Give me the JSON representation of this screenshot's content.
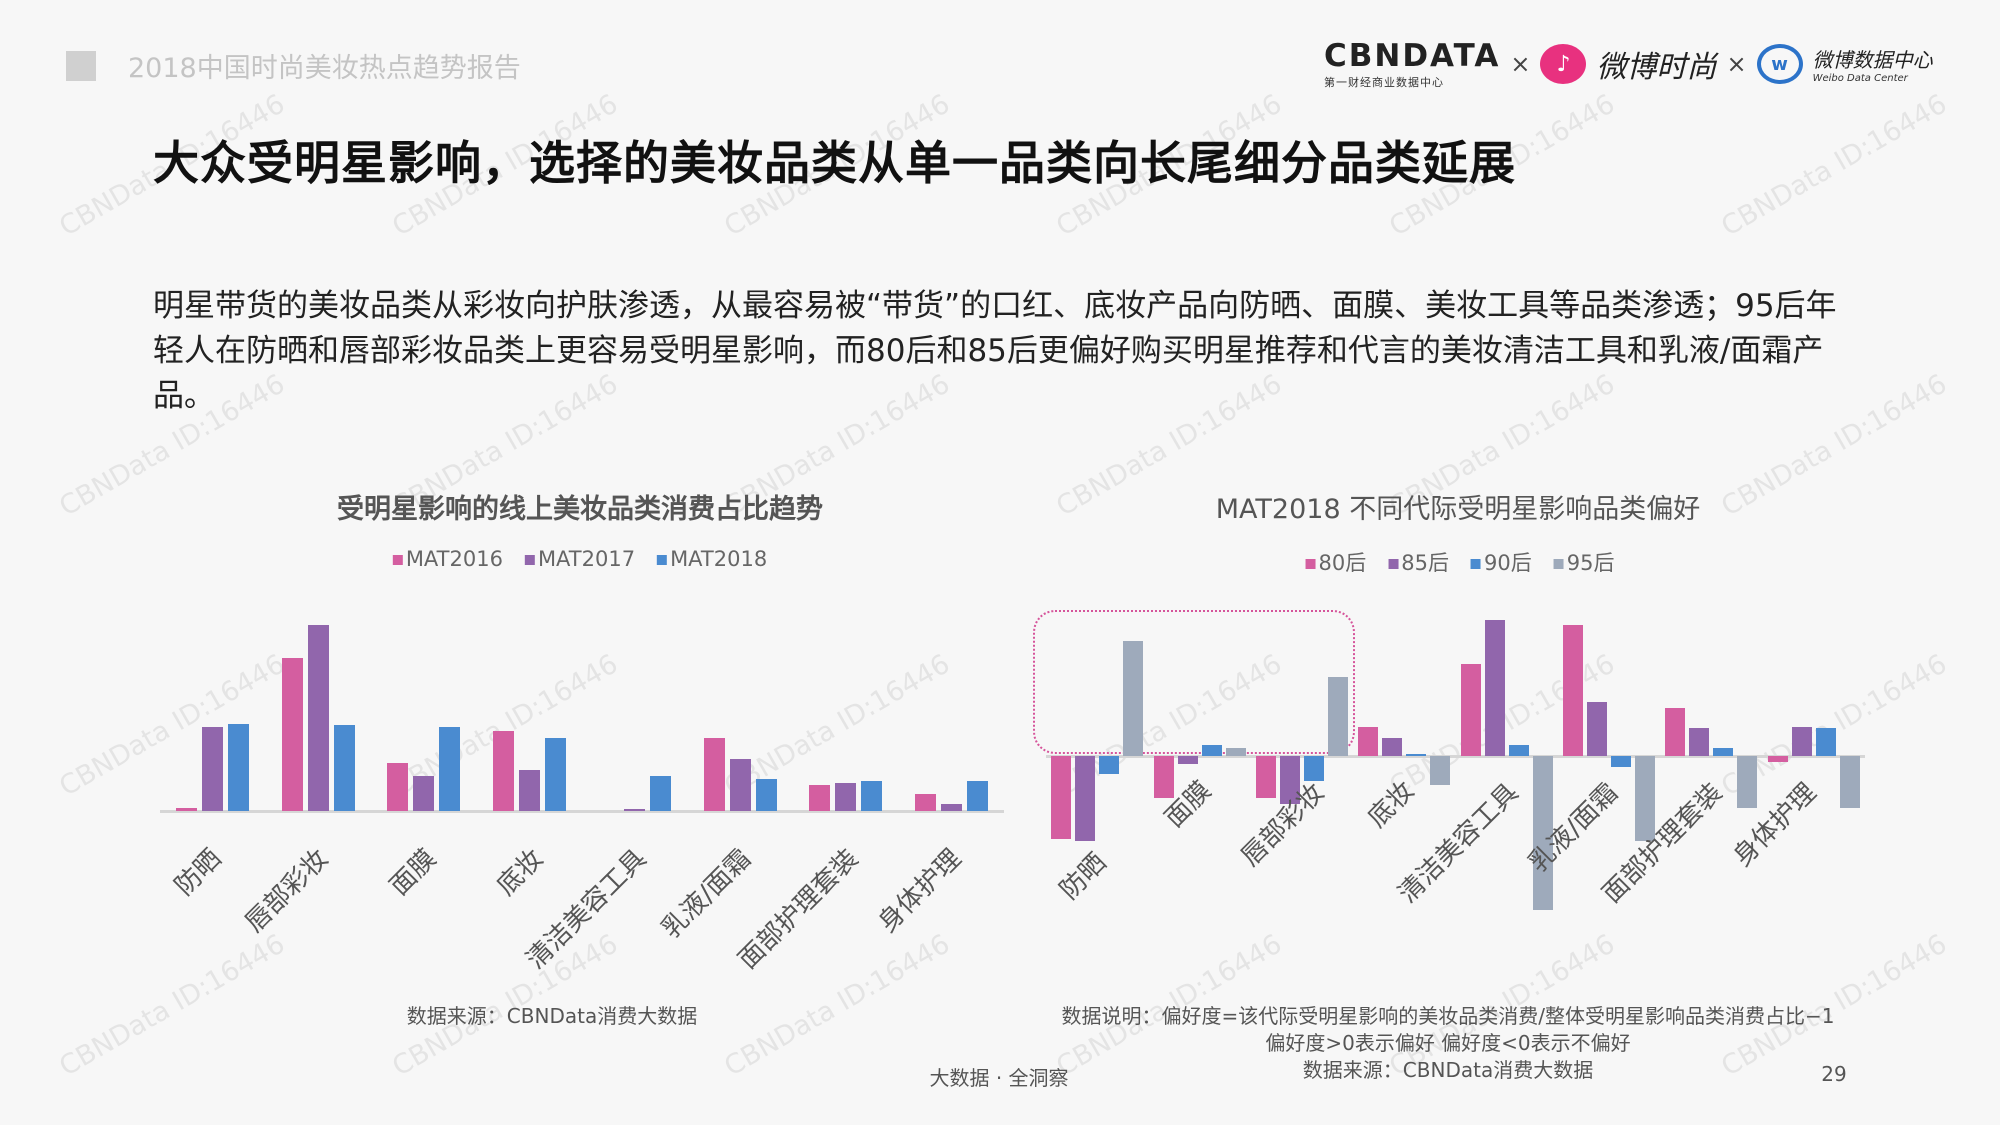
{
  "header": {
    "report_title": "2018中国时尚美妆热点趋势报告",
    "logos": {
      "cbndata": "CBNDATA",
      "cbndata_sub": "第一财经商业数据中心",
      "weibo_fashion": "微博时尚",
      "weibo_data": "微博数据中心",
      "weibo_data_sub": "Weibo Data Center",
      "separator": "×"
    }
  },
  "title": "大众受明星影响，选择的美妆品类从单一品类向长尾细分品类延展",
  "paragraph": "明星带货的美妆品类从彩妆向护肤渗透，从最容易被“带货”的口红、底妆产品向防晒、面膜、美妆工具等品类渗透；95后年轻人在防晒和唇部彩妆品类上更容易受明星影响，而80后和85后更偏好购买明星推荐和代言的美妆清洁工具和乳液/面霜产品。",
  "watermark": "CBNData ID:16446",
  "colors": {
    "pink": "#d45ea0",
    "purple": "#9166ac",
    "blue": "#4a8bd0",
    "gray": "#9eaabb",
    "highlight": "#d6559b"
  },
  "chart_data": [
    {
      "type": "bar",
      "title": "受明星影响的线上美妆品类消费占比趋势",
      "categories": [
        "防晒",
        "唇部彩妆",
        "面膜",
        "底妆",
        "清洁美容工具",
        "乳液/面霜",
        "面部护理套装",
        "身体护理"
      ],
      "series": [
        {
          "name": "MAT2016",
          "color": "#d45ea0",
          "values": [
            1.4,
            82,
            26,
            43,
            0,
            39,
            14,
            9
          ]
        },
        {
          "name": "MAT2017",
          "color": "#9166ac",
          "values": [
            45,
            100,
            19,
            22,
            1,
            28,
            15,
            4
          ]
        },
        {
          "name": "MAT2018",
          "color": "#4a8bd0",
          "values": [
            47,
            46,
            45,
            39,
            19,
            17,
            16,
            16
          ]
        }
      ],
      "value_note": "relative bar heights (no axis printed), max = 100",
      "legend_position": "top",
      "grid": false,
      "source": "数据来源：CBNData消费大数据"
    },
    {
      "type": "bar",
      "title": "MAT2018 不同代际受明星影响品类偏好",
      "categories": [
        "防晒",
        "面膜",
        "唇部彩妆",
        "底妆",
        "清洁美容工具",
        "乳液/面霜",
        "面部护理套装",
        "身体护理"
      ],
      "series": [
        {
          "name": "80后",
          "color": "#d45ea0",
          "values": [
            -54,
            -27,
            -27,
            19,
            60,
            85,
            31,
            -4
          ]
        },
        {
          "name": "85后",
          "color": "#9166ac",
          "values": [
            -55,
            -5,
            -31,
            12,
            88,
            35,
            18,
            19
          ]
        },
        {
          "name": "90后",
          "color": "#4a8bd0",
          "values": [
            -12,
            7,
            -16,
            1,
            7,
            -7,
            5,
            18
          ]
        },
        {
          "name": "95后",
          "color": "#9eaabb",
          "values": [
            75,
            5,
            51,
            -19,
            -100,
            -55,
            -34,
            -34
          ]
        }
      ],
      "value_note": "relative bar heights (no axis printed)",
      "legend_position": "top",
      "grid": false,
      "highlighted_categories": [
        "防晒",
        "面膜",
        "唇部彩妆"
      ],
      "notes": [
        "数据说明：偏好度=该代际受明星影响的美妆品类消费/整体受明星影响品类消费占比−1",
        "偏好度>0表示偏好 偏好度<0表示不偏好",
        "数据来源：CBNData消费大数据"
      ]
    }
  ],
  "footer": {
    "slogan": "大数据 · 全洞察",
    "page_number": "29"
  }
}
